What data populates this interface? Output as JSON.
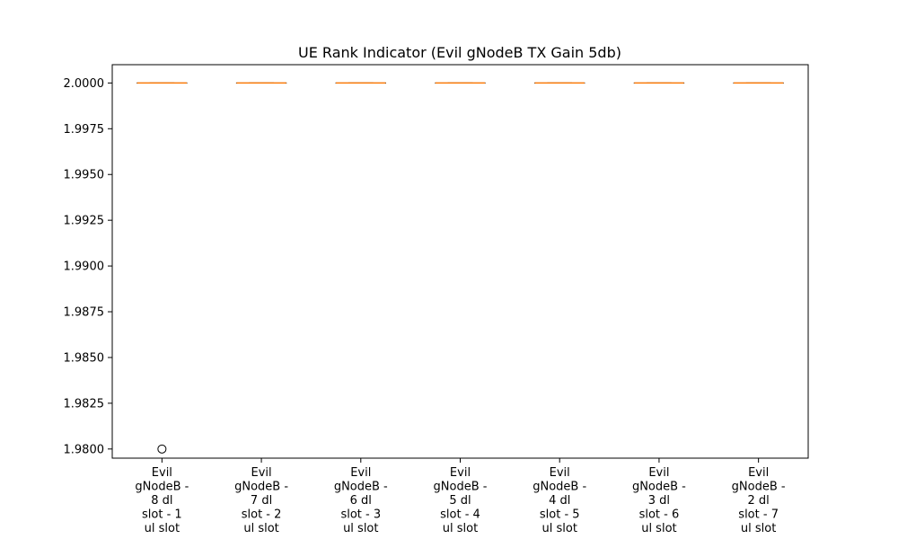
{
  "chart_data": {
    "type": "box",
    "title": "UE Rank Indicator (Evil gNodeB TX Gain 5db)",
    "xlabel": "",
    "ylabel": "",
    "ylim": [
      1.9795,
      2.001
    ],
    "yticks": [
      2.0,
      1.9975,
      1.995,
      1.9925,
      1.99,
      1.9875,
      1.985,
      1.9825,
      1.98
    ],
    "ytick_labels": [
      "2.0000",
      "1.9975",
      "1.9950",
      "1.9925",
      "1.9900",
      "1.9875",
      "1.9850",
      "1.9825",
      "1.9800"
    ],
    "categories": [
      [
        "Evil",
        "gNodeB -",
        "8 dl",
        "slot - 1",
        "ul slot"
      ],
      [
        "Evil",
        "gNodeB -",
        "7 dl",
        "slot - 2",
        "ul slot"
      ],
      [
        "Evil",
        "gNodeB -",
        "6 dl",
        "slot - 3",
        "ul slot"
      ],
      [
        "Evil",
        "gNodeB -",
        "5 dl",
        "slot - 4",
        "ul slot"
      ],
      [
        "Evil",
        "gNodeB -",
        "4 dl",
        "slot - 5",
        "ul slot"
      ],
      [
        "Evil",
        "gNodeB -",
        "3 dl",
        "slot - 6",
        "ul slot"
      ],
      [
        "Evil",
        "gNodeB -",
        "2 dl",
        "slot - 7",
        "ul slot"
      ]
    ],
    "boxes": [
      {
        "q1": 2.0,
        "median": 2.0,
        "q3": 2.0,
        "whisker_low": 2.0,
        "whisker_high": 2.0,
        "fliers": [
          1.98
        ]
      },
      {
        "q1": 2.0,
        "median": 2.0,
        "q3": 2.0,
        "whisker_low": 2.0,
        "whisker_high": 2.0,
        "fliers": []
      },
      {
        "q1": 2.0,
        "median": 2.0,
        "q3": 2.0,
        "whisker_low": 2.0,
        "whisker_high": 2.0,
        "fliers": []
      },
      {
        "q1": 2.0,
        "median": 2.0,
        "q3": 2.0,
        "whisker_low": 2.0,
        "whisker_high": 2.0,
        "fliers": []
      },
      {
        "q1": 2.0,
        "median": 2.0,
        "q3": 2.0,
        "whisker_low": 2.0,
        "whisker_high": 2.0,
        "fliers": []
      },
      {
        "q1": 2.0,
        "median": 2.0,
        "q3": 2.0,
        "whisker_low": 2.0,
        "whisker_high": 2.0,
        "fliers": []
      },
      {
        "q1": 2.0,
        "median": 2.0,
        "q3": 2.0,
        "whisker_low": 2.0,
        "whisker_high": 2.0,
        "fliers": []
      }
    ],
    "grid": false,
    "colors": {
      "box": "#000000",
      "median": "#ff7f0e",
      "flier": "#000000",
      "axis": "#000000"
    }
  }
}
